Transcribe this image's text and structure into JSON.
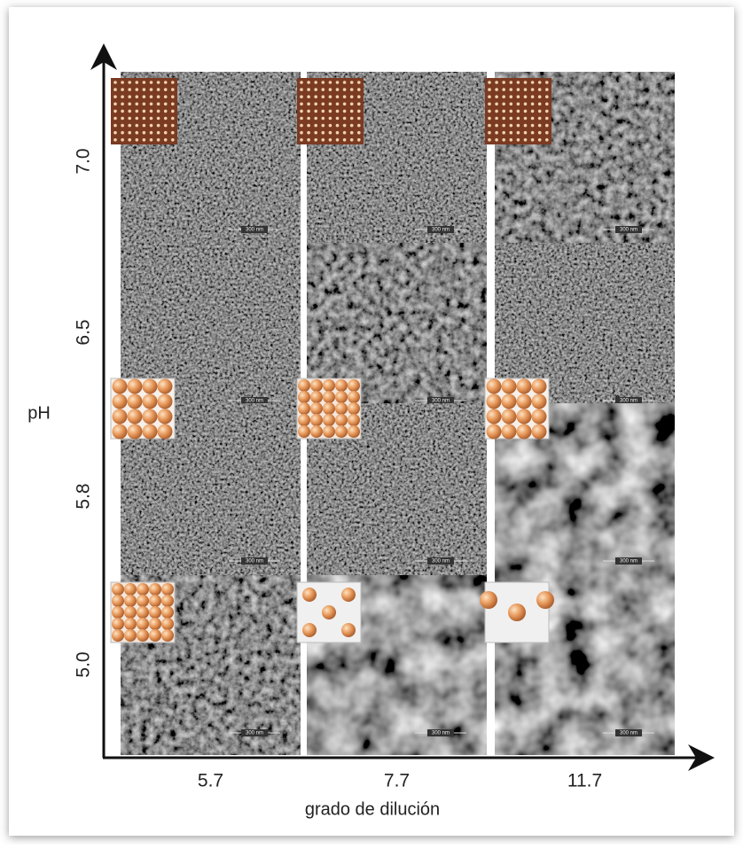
{
  "axes": {
    "y_label": "pH",
    "x_label": "grado de dilución",
    "y_ticks": [
      "7.0",
      "6.5",
      "5.8",
      "5.0"
    ],
    "x_ticks": [
      "5.7",
      "7.7",
      "11.7"
    ]
  },
  "scale_bar": "300 nm"
}
